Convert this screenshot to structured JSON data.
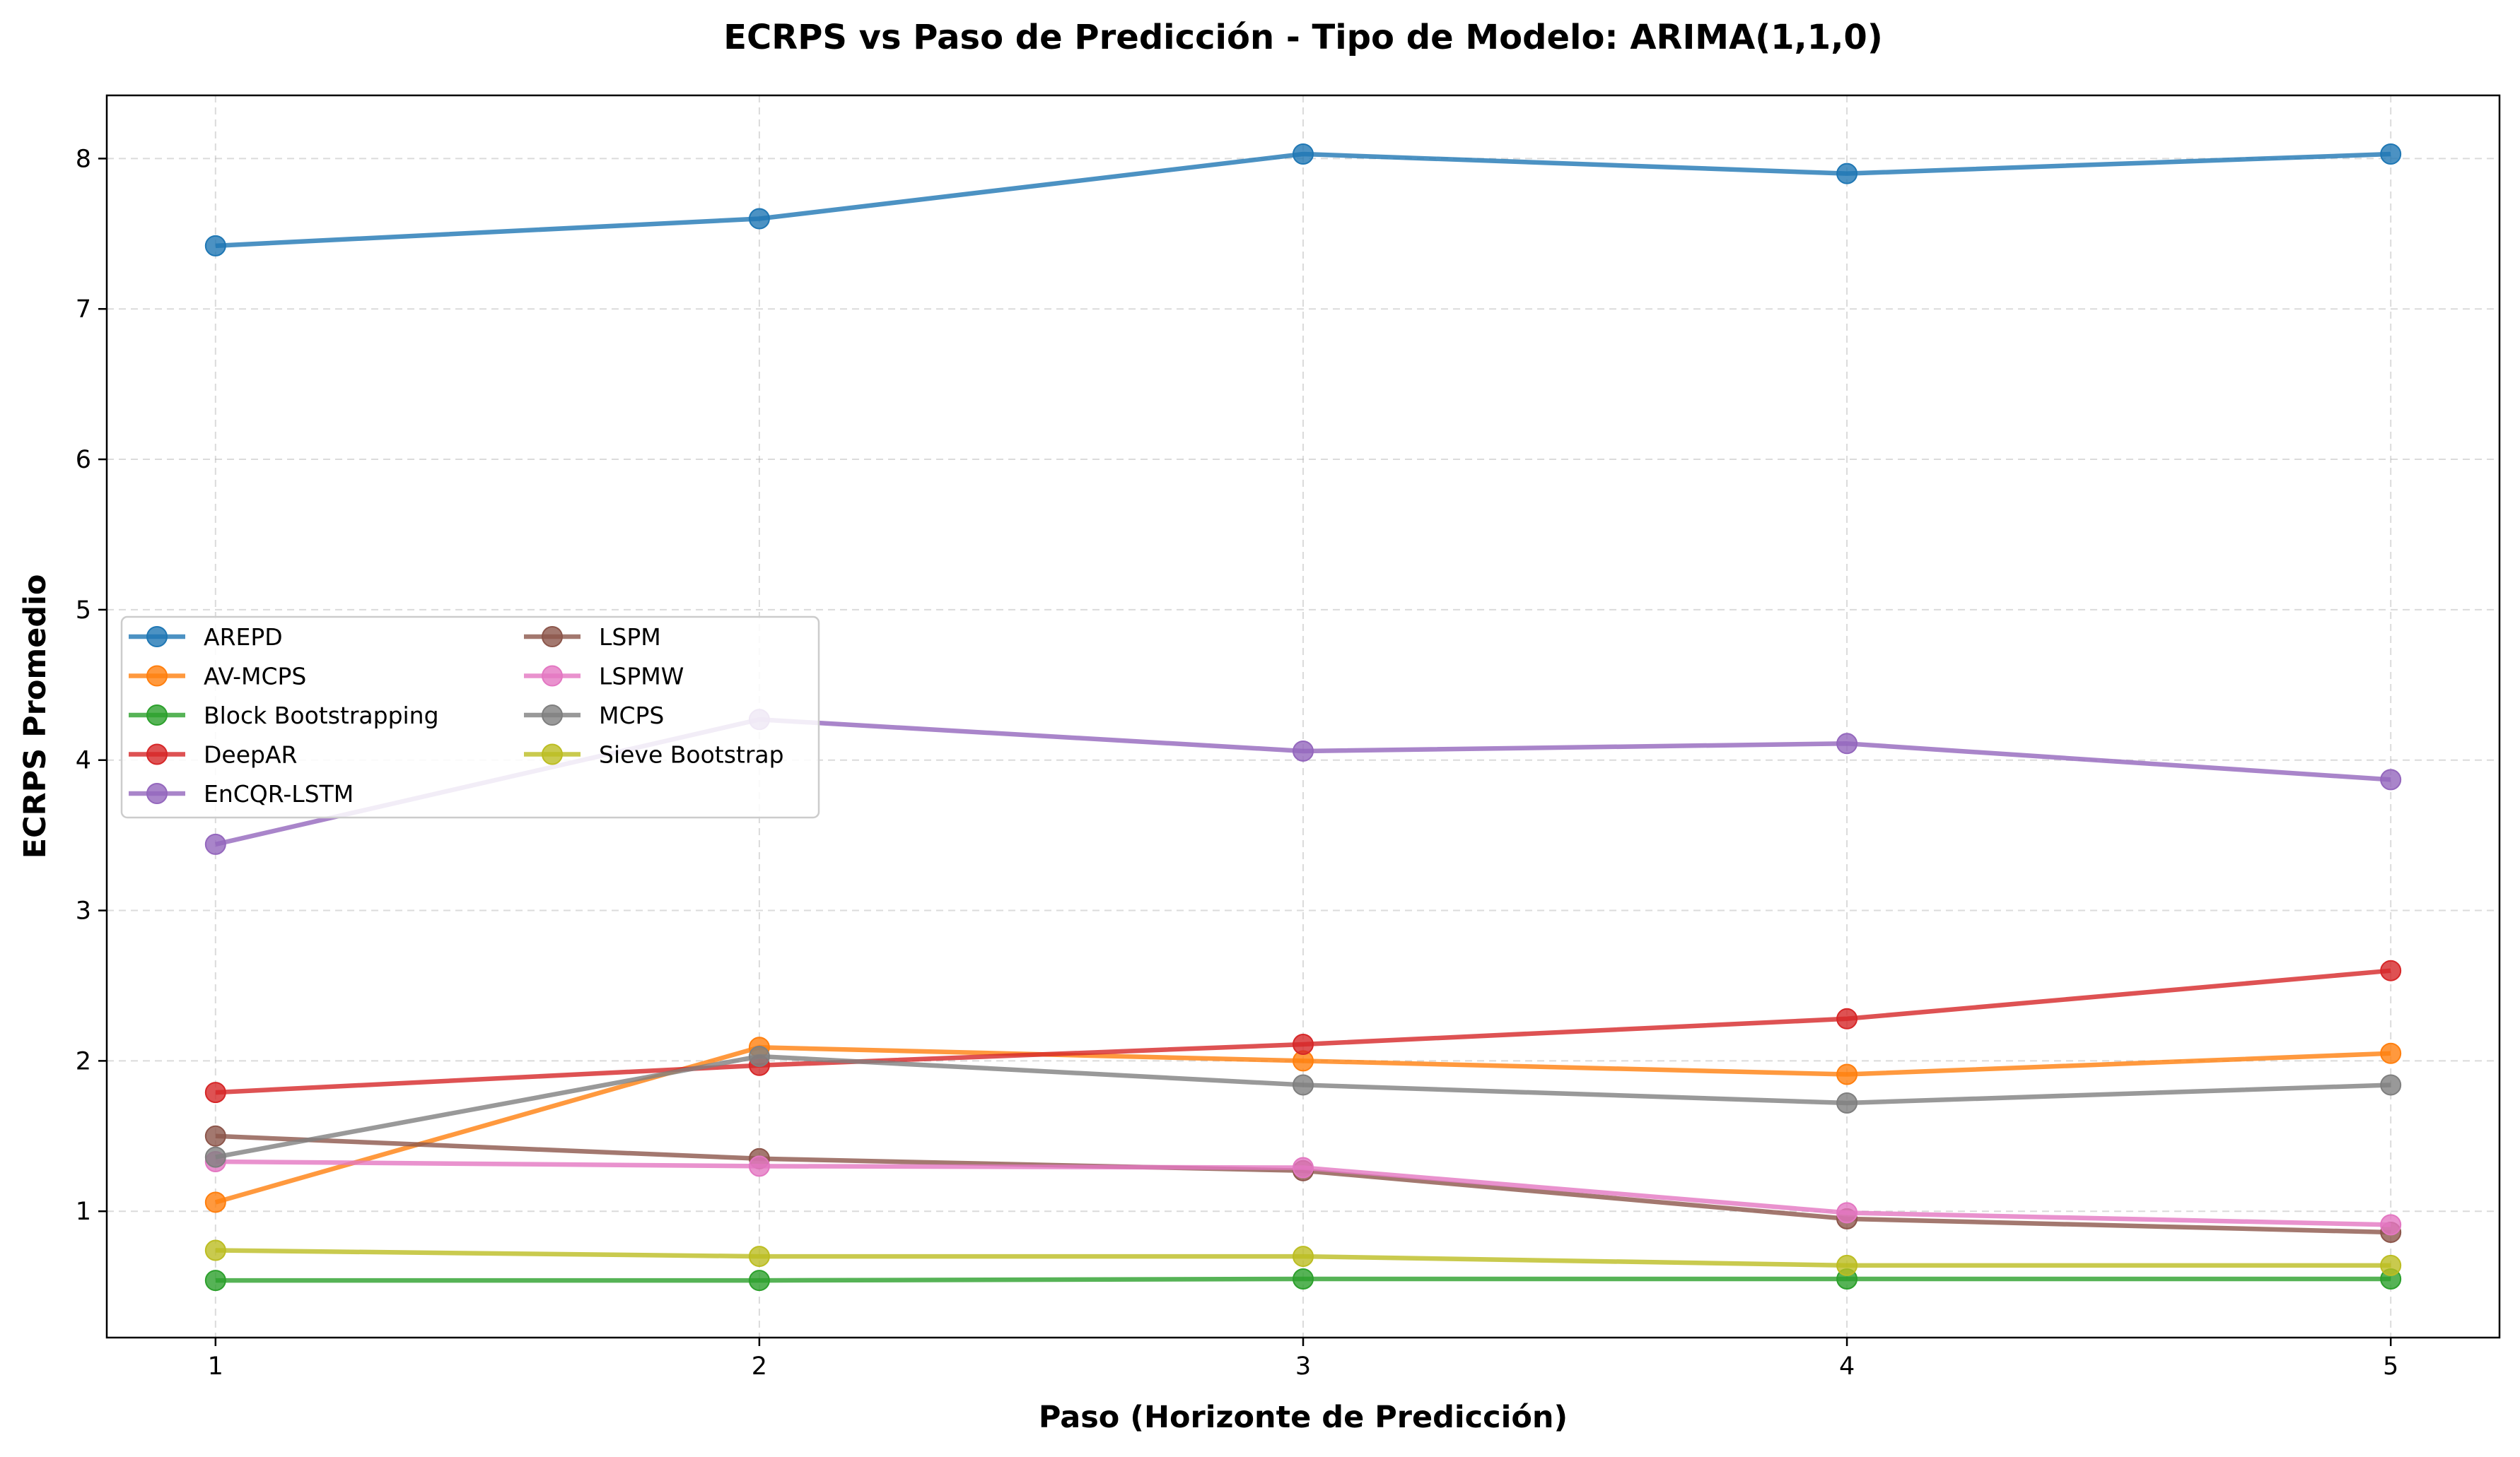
{
  "chart_data": {
    "type": "line",
    "title": "ECRPS vs Paso de Predicción - Tipo de Modelo: ARIMA(1,1,0)",
    "xlabel": "Paso (Horizonte de Predicción)",
    "ylabel": "ECRPS Promedio",
    "x": [
      1,
      2,
      3,
      4,
      5
    ],
    "xlim": [
      0.8,
      5.2
    ],
    "ylim": [
      0.16,
      8.42
    ],
    "xticks": [
      "1",
      "2",
      "3",
      "4",
      "5"
    ],
    "yticks": [
      "1",
      "2",
      "3",
      "4",
      "5",
      "6",
      "7",
      "8"
    ],
    "grid": true,
    "legend_position": "center-left",
    "series": [
      {
        "name": "AREPD",
        "color": "#1f77b4",
        "values": [
          7.42,
          7.6,
          8.03,
          7.9,
          8.03
        ]
      },
      {
        "name": "AV-MCPS",
        "color": "#ff7f0e",
        "values": [
          1.06,
          2.09,
          2.0,
          1.91,
          2.05
        ]
      },
      {
        "name": "Block Bootstrapping",
        "color": "#2ca02c",
        "values": [
          0.54,
          0.54,
          0.55,
          0.55,
          0.55
        ]
      },
      {
        "name": "DeepAR",
        "color": "#d62728",
        "values": [
          1.79,
          1.97,
          2.11,
          2.28,
          2.6
        ]
      },
      {
        "name": "EnCQR-LSTM",
        "color": "#9467bd",
        "values": [
          3.44,
          4.27,
          4.06,
          4.11,
          3.87
        ]
      },
      {
        "name": "LSPM",
        "color": "#8c564b",
        "values": [
          1.5,
          1.35,
          1.27,
          0.95,
          0.86
        ]
      },
      {
        "name": "LSPMW",
        "color": "#e377c2",
        "values": [
          1.33,
          1.3,
          1.29,
          0.99,
          0.91
        ]
      },
      {
        "name": "MCPS",
        "color": "#7f7f7f",
        "values": [
          1.36,
          2.03,
          1.84,
          1.72,
          1.84
        ]
      },
      {
        "name": "Sieve Bootstrap",
        "color": "#bcbd22",
        "values": [
          0.74,
          0.7,
          0.7,
          0.64,
          0.64
        ]
      }
    ]
  }
}
